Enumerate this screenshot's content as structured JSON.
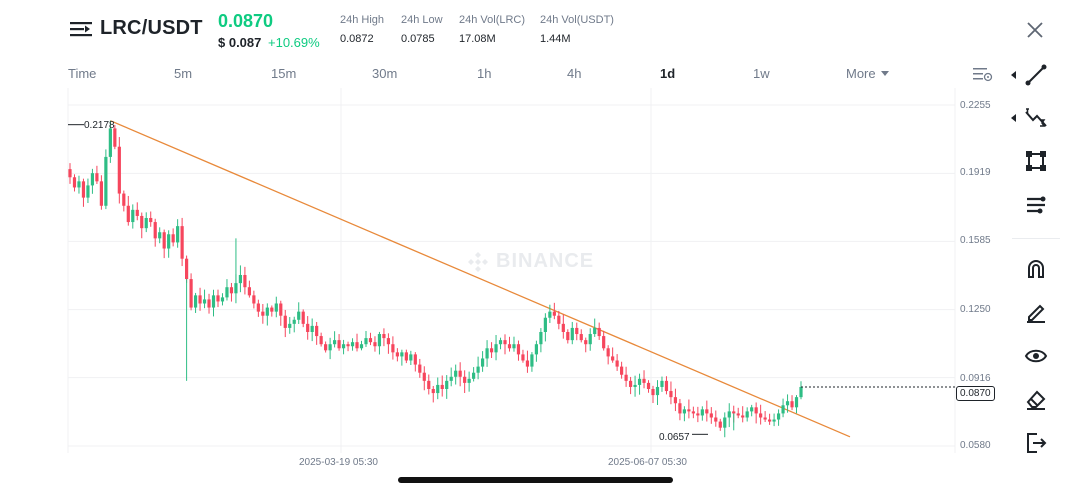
{
  "header": {
    "pair": "LRC/USDT",
    "price": "0.0870",
    "usd_price": "$ 0.087",
    "change": "+10.69%",
    "stats": [
      {
        "label": "24h High",
        "value": "0.0872"
      },
      {
        "label": "24h Low",
        "value": "0.0785"
      },
      {
        "label": "24h Vol(LRC)",
        "value": "17.08M"
      },
      {
        "label": "24h Vol(USDT)",
        "value": "1.44M"
      }
    ]
  },
  "tabs": [
    {
      "label": "Time",
      "active": false
    },
    {
      "label": "5m",
      "active": false
    },
    {
      "label": "15m",
      "active": false
    },
    {
      "label": "30m",
      "active": false
    },
    {
      "label": "1h",
      "active": false
    },
    {
      "label": "4h",
      "active": false
    },
    {
      "label": "1d",
      "active": true
    },
    {
      "label": "1w",
      "active": false
    }
  ],
  "more_label": "More",
  "watermark": "BINANCE",
  "chart_data": {
    "type": "candlestick",
    "y_ticks": [
      "0.2255",
      "0.1919",
      "0.1585",
      "0.1250",
      "0.0916",
      "0.0580"
    ],
    "ylim": [
      0.058,
      0.2255
    ],
    "x_ticks": [
      "2025-03-19 05:30",
      "2025-06-07 05:30"
    ],
    "current_price": "0.0870",
    "high_annotation": "0.2178",
    "low_annotation": "0.0657",
    "trendline": {
      "start": 0.2178,
      "end": 0.0625,
      "color": "#e8893a"
    },
    "close_series": [
      0.19,
      0.185,
      0.188,
      0.18,
      0.186,
      0.192,
      0.188,
      0.176,
      0.2,
      0.214,
      0.205,
      0.182,
      0.176,
      0.168,
      0.174,
      0.171,
      0.165,
      0.17,
      0.168,
      0.16,
      0.163,
      0.155,
      0.162,
      0.158,
      0.166,
      0.15,
      0.14,
      0.126,
      0.132,
      0.128,
      0.13,
      0.126,
      0.132,
      0.129,
      0.131,
      0.136,
      0.133,
      0.138,
      0.142,
      0.136,
      0.132,
      0.128,
      0.124,
      0.122,
      0.126,
      0.124,
      0.128,
      0.122,
      0.116,
      0.118,
      0.12,
      0.124,
      0.118,
      0.114,
      0.117,
      0.112,
      0.108,
      0.105,
      0.108,
      0.11,
      0.106,
      0.108,
      0.107,
      0.109,
      0.106,
      0.108,
      0.111,
      0.109,
      0.107,
      0.113,
      0.111,
      0.108,
      0.104,
      0.102,
      0.104,
      0.1,
      0.103,
      0.098,
      0.094,
      0.09,
      0.086,
      0.084,
      0.088,
      0.086,
      0.09,
      0.092,
      0.095,
      0.092,
      0.089,
      0.091,
      0.094,
      0.097,
      0.101,
      0.106,
      0.104,
      0.108,
      0.11,
      0.108,
      0.106,
      0.108,
      0.103,
      0.1,
      0.097,
      0.103,
      0.108,
      0.114,
      0.121,
      0.124,
      0.122,
      0.118,
      0.114,
      0.11,
      0.116,
      0.113,
      0.11,
      0.108,
      0.113,
      0.116,
      0.112,
      0.106,
      0.102,
      0.1,
      0.097,
      0.093,
      0.09,
      0.087,
      0.088,
      0.091,
      0.089,
      0.086,
      0.083,
      0.087,
      0.09,
      0.085,
      0.082,
      0.079,
      0.074,
      0.076,
      0.075,
      0.074,
      0.073,
      0.076,
      0.074,
      0.072,
      0.07,
      0.067,
      0.072,
      0.075,
      0.074,
      0.073,
      0.072,
      0.075,
      0.077,
      0.074,
      0.072,
      0.071,
      0.07,
      0.071,
      0.074,
      0.078,
      0.08,
      0.077,
      0.082,
      0.087
    ]
  },
  "toolbar": {
    "tools": [
      "trend-line-icon",
      "fib-icon",
      "rectangle-icon",
      "parallel-icon",
      "magnet-icon",
      "pencil-icon",
      "eye-icon",
      "eraser-icon",
      "exit-icon"
    ]
  }
}
